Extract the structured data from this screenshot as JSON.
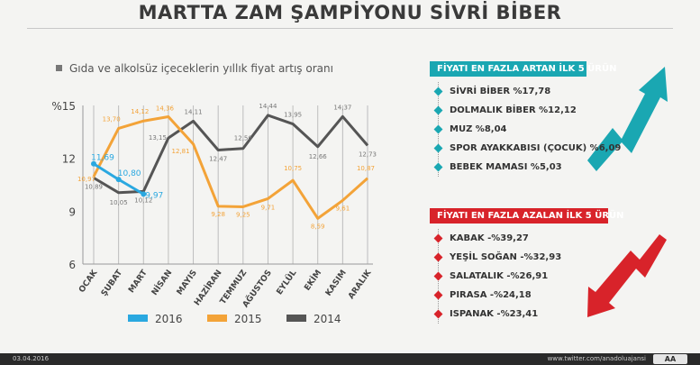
{
  "title": "MARTTA ZAM ŞAMPİYONU SİVRİ BİBER",
  "subtitle": "Gıda ve alkolsüz içeceklerin yıllık fiyat artış oranı",
  "colors": {
    "2016": "#2aa8e0",
    "2015": "#f3a338",
    "2014": "#555555",
    "teal": "#1aa7b2",
    "red": "#d8232a"
  },
  "chart_data": {
    "type": "line",
    "categories": [
      "OCAK",
      "ŞUBAT",
      "MART",
      "NİSAN",
      "MAYIS",
      "HAZİRAN",
      "TEMMUZ",
      "AĞUSTOS",
      "EYLÜL",
      "EKİM",
      "KASIM",
      "ARALIK"
    ],
    "ylabel": "%15",
    "ylim": [
      6,
      15
    ],
    "yticks": [
      6,
      9,
      12
    ],
    "grid": "vertical",
    "series": [
      {
        "name": "2016",
        "values": [
          11.69,
          10.8,
          9.97,
          null,
          null,
          null,
          null,
          null,
          null,
          null,
          null,
          null
        ],
        "labels": [
          "11,69",
          "10,80",
          "9,97"
        ]
      },
      {
        "name": "2015",
        "values": [
          10.97,
          13.7,
          14.12,
          14.36,
          12.81,
          9.28,
          9.25,
          9.71,
          10.75,
          8.59,
          9.61,
          10.87
        ],
        "labels": [
          "10,97",
          "13,70",
          "14,12",
          "14,36",
          "12,81",
          "9,28",
          "9,25",
          "9,71",
          "10,75",
          "8,59",
          "9,61",
          "10,87"
        ]
      },
      {
        "name": "2014",
        "values": [
          10.89,
          10.05,
          10.12,
          13.15,
          14.11,
          12.47,
          12.56,
          14.44,
          13.95,
          12.66,
          14.37,
          12.73
        ],
        "labels": [
          "10,89",
          "10,05",
          "10,12",
          "13,15",
          "14,11",
          "12,47",
          "12,56",
          "14,44",
          "13,95",
          "12,66",
          "14,37",
          "12,73"
        ]
      }
    ]
  },
  "legend": [
    "2016",
    "2015",
    "2014"
  ],
  "panel_up": {
    "heading": "FİYATI EN FAZLA ARTAN İLK 5 ÜRÜN",
    "items": [
      "SİVRİ BİBER %17,78",
      "DOLMALIK BİBER %12,12",
      "MUZ %8,04",
      "SPOR AYAKKABISI (ÇOCUK) %6,09",
      "BEBEK MAMASI %5,03"
    ]
  },
  "panel_down": {
    "heading": "FİYATI EN FAZLA AZALAN İLK 5 ÜRÜN",
    "items": [
      "KABAK -%39,27",
      "YEŞİL SOĞAN -%32,93",
      "SALATALIK -%26,91",
      "PIRASA -%24,18",
      "ISPANAK -%23,41"
    ]
  },
  "footer": {
    "date": "03.04.2016",
    "url": "www.twitter.com/anadoluajansi",
    "logo": "AA"
  }
}
